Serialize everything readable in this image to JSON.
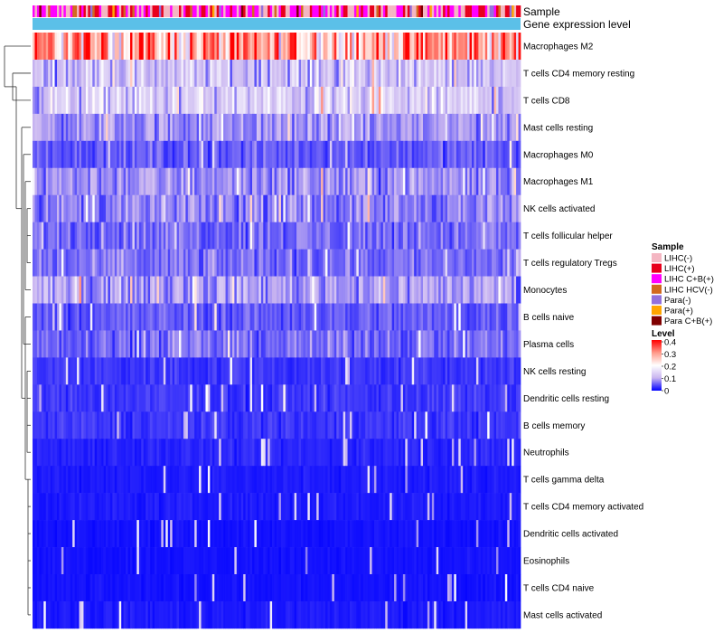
{
  "chart_data": {
    "type": "heatmap",
    "title": "",
    "annotation_rows": [
      "Sample",
      "Gene expression level"
    ],
    "rows": [
      {
        "name": "Macrophages M2",
        "level": 0.28
      },
      {
        "name": "T cells CD4 memory resting",
        "level": 0.12
      },
      {
        "name": "T cells CD8",
        "level": 0.13
      },
      {
        "name": "Mast cells resting",
        "level": 0.08
      },
      {
        "name": "Macrophages M0",
        "level": 0.05
      },
      {
        "name": "Macrophages M1",
        "level": 0.08
      },
      {
        "name": "NK cells activated",
        "level": 0.07
      },
      {
        "name": "T cells follicular helper",
        "level": 0.06
      },
      {
        "name": "T cells regulatory  Tregs",
        "level": 0.06
      },
      {
        "name": "Monocytes",
        "level": 0.09
      },
      {
        "name": "B cells naive",
        "level": 0.05
      },
      {
        "name": "Plasma cells",
        "level": 0.06
      },
      {
        "name": "NK cells resting",
        "level": 0.03
      },
      {
        "name": "Dendritic cells resting",
        "level": 0.03
      },
      {
        "name": "B cells memory",
        "level": 0.03
      },
      {
        "name": "Neutrophils",
        "level": 0.02
      },
      {
        "name": "T cells gamma delta",
        "level": 0.015
      },
      {
        "name": "T cells CD4 memory activated",
        "level": 0.015
      },
      {
        "name": "Dendritic cells activated",
        "level": 0.01
      },
      {
        "name": "Eosinophils",
        "level": 0.01
      },
      {
        "name": "T cells CD4 naive",
        "level": 0.01
      },
      {
        "name": "Mast cells activated",
        "level": 0.015
      }
    ],
    "sample_legend": {
      "title": "Sample",
      "items": [
        {
          "label": "LIHC(-)",
          "color": "#f4b6c2"
        },
        {
          "label": "LIHC(+)",
          "color": "#e8001c"
        },
        {
          "label": "LIHC C+B(+)",
          "color": "#ff00ff"
        },
        {
          "label": "LIHC HCV(-)",
          "color": "#d2691e"
        },
        {
          "label": "Para(-)",
          "color": "#9370db"
        },
        {
          "label": "Para(+)",
          "color": "#ffa500"
        },
        {
          "label": "Para C+B(+)",
          "color": "#800000"
        }
      ]
    },
    "level_legend": {
      "title": "Level",
      "ticks": [
        "0.4",
        "0.3",
        "0.2",
        "0.1",
        "0"
      ],
      "range": [
        0,
        0.4
      ],
      "colors": [
        "#0000ff",
        "#c8b4f0",
        "#ffffff",
        "#ff9a8a",
        "#ff0000"
      ]
    },
    "gene_expression_bar_color": "#5bc0e8"
  }
}
